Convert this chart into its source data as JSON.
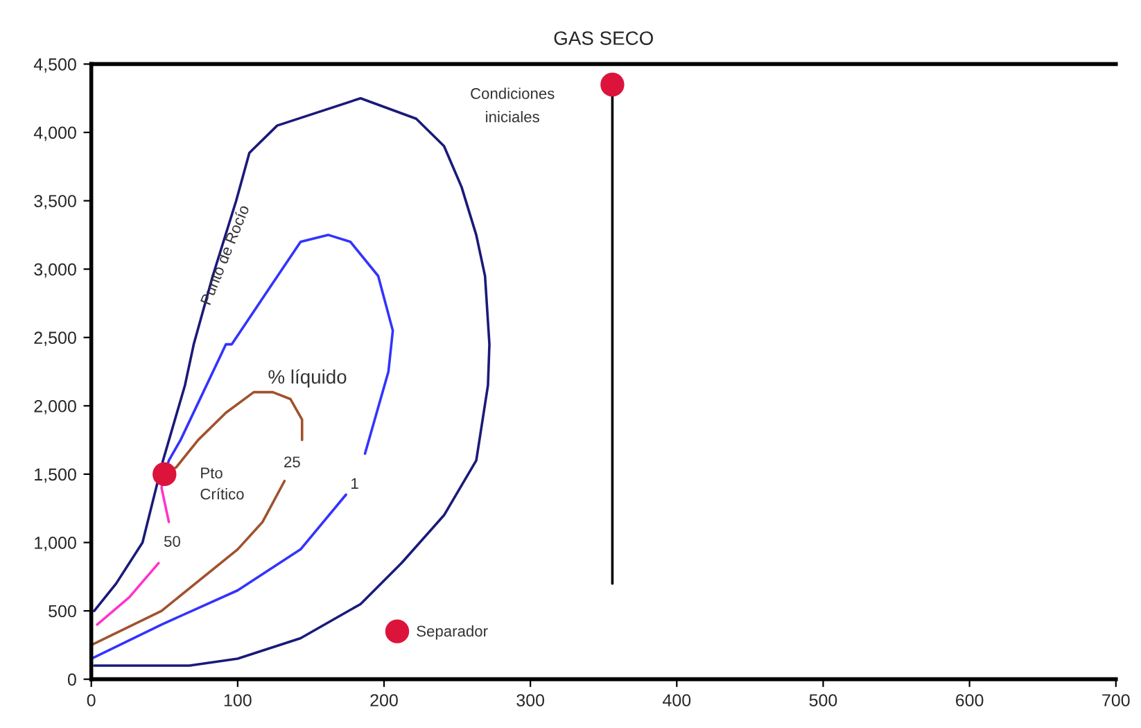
{
  "chart_data": {
    "type": "line",
    "title": "GAS SECO",
    "xlim": [
      0,
      700
    ],
    "xticks": [
      0,
      100,
      200,
      300,
      400,
      500,
      600,
      700
    ],
    "ylim": [
      0,
      4500
    ],
    "yticks": [
      0,
      500,
      {
        "value": 1000,
        "label": "1,000"
      },
      {
        "value": 1500,
        "label": "1,500"
      },
      {
        "value": 2000,
        "label": "2,000"
      },
      {
        "value": 2500,
        "label": "2,500"
      },
      {
        "value": 3000,
        "label": "3,000"
      },
      {
        "value": 3500,
        "label": "3,500"
      },
      {
        "value": 4000,
        "label": "4,000"
      },
      {
        "value": 4500,
        "label": "4,500"
      }
    ],
    "grid": false,
    "legend": false,
    "marker": "none",
    "line_style": "solid",
    "series": [
      {
        "color": "#1a1a7a",
        "x": [
          2,
          17,
          35,
          49,
          64,
          70,
          83,
          99,
          108,
          127,
          184,
          222,
          241,
          253,
          263,
          269,
          272,
          271,
          263,
          241,
          212,
          184,
          143,
          100,
          67,
          26,
          2
        ],
        "values": [
          500,
          700,
          1000,
          1600,
          2150,
          2450,
          2950,
          3500,
          3850,
          4050,
          4250,
          4100,
          3900,
          3600,
          3250,
          2950,
          2450,
          2150,
          1600,
          1200,
          850,
          550,
          300,
          150,
          100,
          100,
          100
        ]
      },
      {
        "color": "#3333ff",
        "x": [
          0,
          48,
          100,
          143,
          174,
          180,
          187,
          203,
          206,
          196,
          177,
          162,
          143,
          121,
          96,
          92,
          61,
          53,
          50
        ],
        "values": [
          150,
          400,
          650,
          950,
          1350,
          null,
          1650,
          2250,
          2550,
          2950,
          3200,
          3250,
          3200,
          2850,
          2450,
          2450,
          1750,
          1600,
          1500
        ]
      },
      {
        "color": "#a0522d",
        "x": [
          0,
          48,
          100,
          117,
          132,
          138,
          144,
          144,
          136,
          124,
          111,
          92,
          73,
          58,
          50
        ],
        "values": [
          250,
          500,
          950,
          1150,
          1450,
          null,
          1750,
          1900,
          2050,
          2100,
          2100,
          1950,
          1750,
          1550,
          1500
        ]
      },
      {
        "color": "#ff33cc",
        "x": [
          4,
          26,
          46,
          50,
          53,
          48,
          50
        ],
        "values": [
          400,
          600,
          850,
          null,
          1150,
          1400,
          1500
        ]
      },
      {
        "color": "#000000",
        "x": [
          356,
          356
        ],
        "values": [
          4350,
          700
        ]
      },
      {
        "type": "scatter",
        "color": "#dc143c",
        "marker": "circle",
        "x": [
          50,
          209,
          356
        ],
        "values": [
          1500,
          350,
          4350
        ]
      }
    ],
    "annotations": [
      {
        "text": "Punto de Rocío",
        "x": 92,
        "y": 3100
      },
      "Condiciones\niniciales",
      "% líquido",
      "Pto\nCrítico",
      "50",
      "25",
      "1",
      "Separador"
    ]
  }
}
